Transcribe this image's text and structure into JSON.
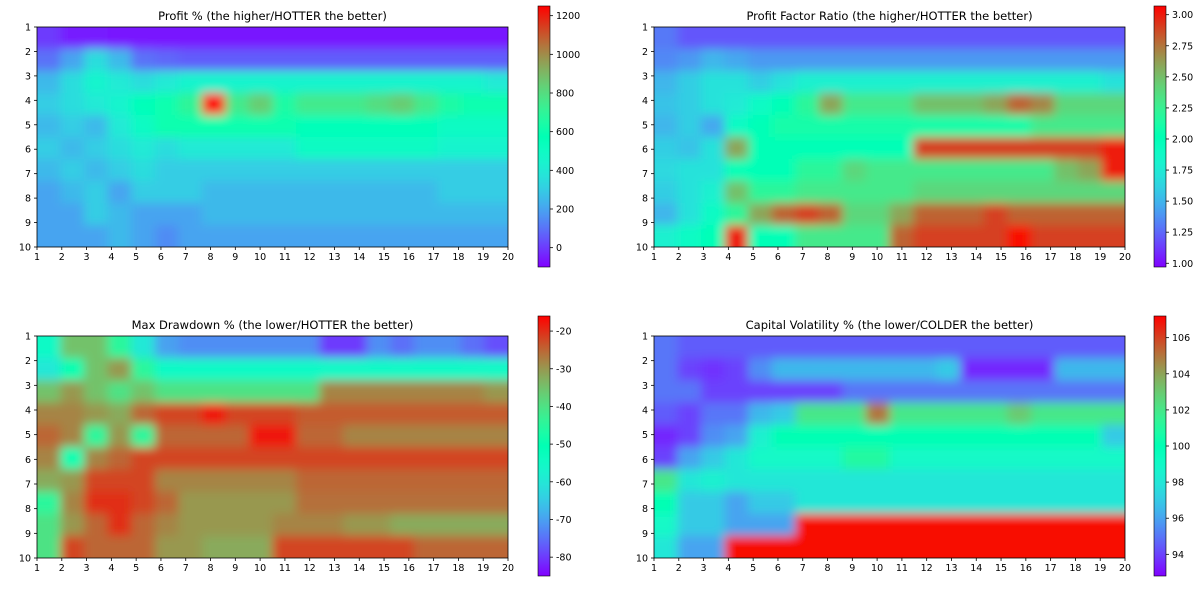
{
  "chart_data": [
    {
      "type": "heatmap",
      "title": "Profit % (the higher/HOTTER the better)",
      "x_ticks": [
        "1",
        "2",
        "3",
        "4",
        "5",
        "6",
        "7",
        "8",
        "9",
        "10",
        "11",
        "12",
        "13",
        "14",
        "15",
        "16",
        "17",
        "18",
        "19",
        "20"
      ],
      "y_ticks": [
        "1",
        "2",
        "3",
        "4",
        "5",
        "6",
        "7",
        "8",
        "9",
        "10"
      ],
      "colorbar": {
        "ticks": [
          "0",
          "200",
          "400",
          "600",
          "800",
          "1000",
          "1200"
        ],
        "range": [
          -100,
          1250
        ]
      },
      "values": [
        [
          0,
          -50,
          -50,
          -60,
          -60,
          -60,
          -60,
          -60,
          -60,
          -60,
          -60,
          -60,
          -60,
          -60,
          -60,
          -60,
          -60,
          -60,
          -60,
          -60
        ],
        [
          100,
          200,
          350,
          250,
          100,
          80,
          60,
          60,
          60,
          60,
          60,
          60,
          60,
          60,
          60,
          60,
          60,
          60,
          60,
          60
        ],
        [
          250,
          350,
          450,
          400,
          350,
          400,
          450,
          450,
          450,
          450,
          450,
          450,
          450,
          450,
          450,
          450,
          450,
          450,
          450,
          400
        ],
        [
          300,
          350,
          400,
          450,
          550,
          600,
          700,
          1250,
          750,
          850,
          650,
          750,
          750,
          750,
          800,
          850,
          750,
          650,
          600,
          600
        ],
        [
          250,
          300,
          250,
          400,
          500,
          600,
          600,
          600,
          600,
          600,
          600,
          550,
          550,
          550,
          550,
          550,
          550,
          500,
          500,
          500
        ],
        [
          300,
          250,
          300,
          350,
          400,
          350,
          400,
          400,
          400,
          400,
          400,
          500,
          500,
          500,
          500,
          500,
          500,
          450,
          450,
          450
        ],
        [
          250,
          300,
          250,
          300,
          350,
          300,
          300,
          300,
          300,
          300,
          300,
          300,
          300,
          300,
          300,
          300,
          300,
          300,
          300,
          300
        ],
        [
          200,
          250,
          300,
          200,
          300,
          300,
          300,
          250,
          250,
          250,
          250,
          250,
          250,
          250,
          250,
          250,
          250,
          300,
          300,
          300
        ],
        [
          200,
          200,
          300,
          250,
          200,
          200,
          200,
          250,
          250,
          250,
          250,
          250,
          250,
          250,
          250,
          250,
          250,
          250,
          250,
          250
        ],
        [
          200,
          200,
          200,
          250,
          200,
          150,
          200,
          200,
          200,
          200,
          200,
          200,
          200,
          200,
          200,
          200,
          200,
          200,
          200,
          200
        ]
      ]
    },
    {
      "type": "heatmap",
      "title": "Profit Factor Ratio (the higher/HOTTER the better)",
      "x_ticks": [
        "1",
        "2",
        "3",
        "4",
        "5",
        "6",
        "7",
        "8",
        "9",
        "10",
        "11",
        "12",
        "13",
        "14",
        "15",
        "16",
        "17",
        "18",
        "19",
        "20"
      ],
      "y_ticks": [
        "1",
        "2",
        "3",
        "4",
        "5",
        "6",
        "7",
        "8",
        "9",
        "10"
      ],
      "colorbar": {
        "ticks": [
          "1.00",
          "1.25",
          "1.50",
          "1.75",
          "2.00",
          "2.25",
          "2.50",
          "2.75",
          "3.00"
        ],
        "range": [
          0.97,
          3.07
        ]
      },
      "values": [
        [
          1.3,
          1.2,
          1.2,
          1.2,
          1.2,
          1.2,
          1.2,
          1.2,
          1.2,
          1.2,
          1.2,
          1.2,
          1.2,
          1.2,
          1.2,
          1.2,
          1.2,
          1.2,
          1.2,
          1.2
        ],
        [
          1.35,
          1.4,
          1.5,
          1.45,
          1.4,
          1.4,
          1.4,
          1.4,
          1.4,
          1.4,
          1.4,
          1.4,
          1.4,
          1.4,
          1.4,
          1.4,
          1.4,
          1.4,
          1.4,
          1.4
        ],
        [
          1.5,
          1.6,
          1.7,
          1.7,
          1.6,
          1.7,
          1.8,
          1.8,
          1.8,
          1.8,
          1.8,
          1.8,
          1.8,
          1.8,
          1.8,
          1.8,
          1.8,
          1.8,
          1.8,
          1.7
        ],
        [
          1.55,
          1.6,
          1.7,
          1.75,
          1.9,
          2.0,
          2.2,
          2.6,
          2.3,
          2.3,
          2.3,
          2.5,
          2.5,
          2.5,
          2.6,
          2.8,
          2.7,
          2.4,
          2.4,
          2.4
        ],
        [
          1.5,
          1.6,
          1.45,
          1.9,
          2.0,
          2.1,
          2.1,
          2.1,
          2.1,
          2.1,
          2.1,
          2.1,
          2.1,
          2.1,
          2.1,
          2.1,
          2.3,
          2.3,
          2.3,
          2.3
        ],
        [
          1.6,
          1.55,
          1.7,
          2.6,
          2.0,
          2.0,
          2.0,
          2.0,
          2.0,
          2.0,
          2.0,
          2.9,
          2.9,
          2.9,
          2.9,
          2.9,
          2.9,
          2.9,
          2.9,
          3.0
        ],
        [
          1.65,
          1.7,
          1.7,
          2.0,
          2.0,
          2.0,
          2.2,
          2.2,
          2.4,
          2.3,
          2.3,
          2.3,
          2.3,
          2.3,
          2.3,
          2.3,
          2.3,
          2.5,
          2.6,
          3.0
        ],
        [
          1.6,
          1.7,
          1.8,
          2.5,
          2.2,
          2.2,
          2.3,
          2.3,
          2.3,
          2.3,
          2.3,
          2.4,
          2.4,
          2.4,
          2.4,
          2.4,
          2.4,
          2.4,
          2.4,
          2.4
        ],
        [
          1.5,
          1.7,
          1.9,
          2.2,
          2.6,
          2.8,
          2.9,
          2.8,
          2.4,
          2.4,
          2.6,
          2.8,
          2.8,
          2.8,
          2.9,
          2.8,
          2.8,
          2.8,
          2.8,
          2.8
        ],
        [
          1.8,
          1.9,
          2.0,
          3.0,
          2.0,
          2.0,
          2.3,
          2.3,
          2.3,
          2.3,
          2.8,
          2.9,
          2.9,
          2.9,
          2.9,
          3.05,
          2.9,
          2.9,
          2.9,
          2.9
        ]
      ]
    },
    {
      "type": "heatmap",
      "title": "Max Drawdown % (the lower/HOTTER the better)",
      "x_ticks": [
        "1",
        "2",
        "3",
        "4",
        "5",
        "6",
        "7",
        "8",
        "9",
        "10",
        "11",
        "12",
        "13",
        "14",
        "15",
        "16",
        "17",
        "18",
        "19",
        "20"
      ],
      "y_ticks": [
        "1",
        "2",
        "3",
        "4",
        "5",
        "6",
        "7",
        "8",
        "9",
        "10"
      ],
      "colorbar": {
        "ticks": [
          "-80",
          "-70",
          "-60",
          "-50",
          "-40",
          "-30",
          "-20"
        ],
        "range": [
          -85,
          -16
        ]
      },
      "values": [
        [
          -55,
          -35,
          -35,
          -45,
          -60,
          -70,
          -72,
          -72,
          -72,
          -72,
          -72,
          -72,
          -80,
          -80,
          -72,
          -75,
          -72,
          -72,
          -75,
          -78
        ],
        [
          -60,
          -50,
          -35,
          -30,
          -45,
          -55,
          -55,
          -55,
          -55,
          -55,
          -55,
          -55,
          -55,
          -55,
          -55,
          -55,
          -55,
          -55,
          -55,
          -55
        ],
        [
          -35,
          -30,
          -35,
          -40,
          -35,
          -40,
          -40,
          -40,
          -40,
          -40,
          -40,
          -40,
          -28,
          -28,
          -28,
          -28,
          -28,
          -28,
          -28,
          -30
        ],
        [
          -28,
          -28,
          -30,
          -32,
          -25,
          -22,
          -22,
          -18,
          -22,
          -22,
          -22,
          -24,
          -24,
          -24,
          -24,
          -24,
          -24,
          -24,
          -24,
          -24
        ],
        [
          -25,
          -28,
          -45,
          -30,
          -45,
          -25,
          -25,
          -25,
          -25,
          -18,
          -18,
          -25,
          -25,
          -28,
          -28,
          -28,
          -28,
          -28,
          -28,
          -28
        ],
        [
          -28,
          -50,
          -28,
          -25,
          -22,
          -22,
          -22,
          -22,
          -22,
          -22,
          -22,
          -22,
          -22,
          -22,
          -22,
          -22,
          -22,
          -22,
          -22,
          -22
        ],
        [
          -32,
          -30,
          -22,
          -22,
          -22,
          -28,
          -28,
          -28,
          -28,
          -28,
          -28,
          -25,
          -25,
          -25,
          -25,
          -25,
          -25,
          -25,
          -25,
          -25
        ],
        [
          -45,
          -28,
          -20,
          -20,
          -22,
          -25,
          -30,
          -30,
          -30,
          -30,
          -30,
          -26,
          -26,
          -26,
          -26,
          -26,
          -26,
          -26,
          -26,
          -26
        ],
        [
          -40,
          -30,
          -25,
          -20,
          -25,
          -28,
          -30,
          -30,
          -30,
          -30,
          -28,
          -28,
          -28,
          -30,
          -30,
          -32,
          -32,
          -32,
          -32,
          -32
        ],
        [
          -40,
          -22,
          -25,
          -25,
          -25,
          -30,
          -30,
          -32,
          -32,
          -32,
          -22,
          -22,
          -22,
          -22,
          -22,
          -22,
          -25,
          -25,
          -25,
          -25
        ]
      ]
    },
    {
      "type": "heatmap",
      "title": "Capital Volatility % (the lower/COLDER the better)",
      "x_ticks": [
        "1",
        "2",
        "3",
        "4",
        "5",
        "6",
        "7",
        "8",
        "9",
        "10",
        "11",
        "12",
        "13",
        "14",
        "15",
        "16",
        "17",
        "18",
        "19",
        "20"
      ],
      "y_ticks": [
        "1",
        "2",
        "3",
        "4",
        "5",
        "6",
        "7",
        "8",
        "9",
        "10"
      ],
      "colorbar": {
        "ticks": [
          "94",
          "96",
          "98",
          "100",
          "102",
          "104",
          "106"
        ],
        "range": [
          92.8,
          107.2
        ]
      },
      "values": [
        [
          95,
          94.5,
          94.5,
          94.5,
          94.5,
          94.5,
          94.5,
          94.5,
          94.5,
          94.5,
          94.5,
          94.5,
          94.5,
          94.5,
          94.5,
          94.5,
          94.5,
          94.5,
          94.5,
          94.5
        ],
        [
          95,
          94,
          93.7,
          94,
          95.5,
          96.5,
          96.5,
          96.5,
          96.5,
          96.5,
          96.5,
          96.5,
          97,
          93.5,
          93.5,
          93.5,
          93.5,
          96.5,
          96.5,
          96.5
        ],
        [
          95,
          95,
          94,
          94,
          94,
          94,
          94,
          94,
          95,
          95,
          95,
          95,
          95,
          95,
          95,
          95,
          95,
          95,
          95,
          95
        ],
        [
          94.5,
          94,
          95,
          95,
          96.5,
          97,
          102,
          102,
          102,
          105,
          102,
          102,
          102,
          102,
          102,
          103,
          102,
          102,
          102,
          102
        ],
        [
          93.5,
          94,
          95.5,
          96,
          98.5,
          100,
          100,
          100,
          100,
          100,
          100,
          100,
          100,
          100,
          100,
          100,
          100,
          100,
          100,
          97
        ],
        [
          94,
          96,
          97,
          98,
          99,
          99,
          99,
          99,
          101,
          101,
          99,
          99,
          99,
          99,
          99,
          99,
          99,
          99,
          99,
          99
        ],
        [
          102,
          98,
          98.5,
          98,
          98,
          98,
          98,
          98,
          98,
          98,
          98,
          98,
          98,
          98,
          98,
          98,
          98,
          98,
          98,
          98
        ],
        [
          100,
          97,
          97,
          96,
          97,
          97,
          98,
          98,
          98,
          98,
          98,
          98,
          98,
          98,
          98,
          98,
          98,
          98,
          98,
          98
        ],
        [
          99,
          97,
          97,
          96,
          96,
          96,
          107,
          107,
          107,
          107,
          107,
          107,
          107,
          107,
          107,
          107,
          107,
          107,
          107,
          107
        ],
        [
          98,
          96,
          96,
          107,
          107,
          107,
          107,
          107,
          107,
          107,
          107,
          107,
          107,
          107,
          107,
          107,
          107,
          107,
          107,
          107
        ]
      ]
    }
  ]
}
